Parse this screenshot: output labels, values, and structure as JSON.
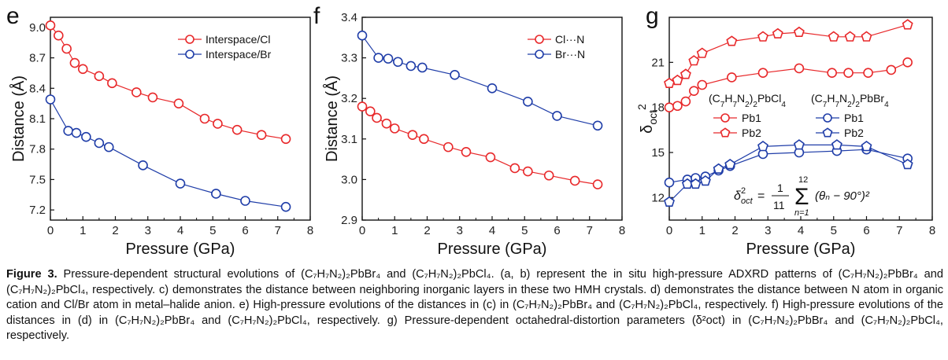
{
  "chart_data": [
    {
      "type": "scatter",
      "panel_label": "e",
      "xlabel": "Pressure (GPa)",
      "ylabel": "Distance (Å)",
      "xlim": [
        0,
        8
      ],
      "ylim": [
        7.1,
        9.1
      ],
      "xticks": [
        "0",
        "1",
        "2",
        "3",
        "4",
        "5",
        "6",
        "7",
        "8"
      ],
      "yticks": [
        "7.2",
        "7.5",
        "7.8",
        "8.1",
        "8.4",
        "8.7",
        "9.0"
      ],
      "yticks_values": [
        7.2,
        7.5,
        7.8,
        8.1,
        8.4,
        8.7,
        9.0
      ],
      "legend_position": "top-right",
      "series": [
        {
          "name": "Interspace/Cl",
          "color": "#e8282a",
          "marker": "circle",
          "x": [
            0,
            0.25,
            0.5,
            0.75,
            1.0,
            1.5,
            1.9,
            2.65,
            3.15,
            3.95,
            4.75,
            5.15,
            5.75,
            6.5,
            7.25
          ],
          "y": [
            9.02,
            8.92,
            8.79,
            8.65,
            8.59,
            8.52,
            8.45,
            8.36,
            8.31,
            8.25,
            8.1,
            8.05,
            7.99,
            7.94,
            7.9
          ]
        },
        {
          "name": "Interspace/Br",
          "color": "#1f3da8",
          "marker": "circle",
          "x": [
            0,
            0.55,
            0.8,
            1.1,
            1.5,
            1.8,
            2.85,
            4.0,
            5.1,
            6.0,
            7.25
          ],
          "y": [
            8.29,
            7.98,
            7.96,
            7.92,
            7.86,
            7.82,
            7.64,
            7.46,
            7.36,
            7.29,
            7.23
          ]
        }
      ]
    },
    {
      "type": "scatter",
      "panel_label": "f",
      "xlabel": "Pressure (GPa)",
      "ylabel": "Distance (Å)",
      "xlim": [
        0,
        8
      ],
      "ylim": [
        2.9,
        3.4
      ],
      "xticks": [
        "0",
        "1",
        "2",
        "3",
        "4",
        "5",
        "6",
        "7",
        "8"
      ],
      "yticks": [
        "2.9",
        "3.0",
        "3.1",
        "3.2",
        "3.3",
        "3.4"
      ],
      "yticks_values": [
        2.9,
        3.0,
        3.1,
        3.2,
        3.3,
        3.4
      ],
      "legend_position": "top-right",
      "series": [
        {
          "name": "Cl···N",
          "color": "#e8282a",
          "marker": "circle",
          "x": [
            0,
            0.25,
            0.45,
            0.75,
            1.0,
            1.55,
            1.9,
            2.65,
            3.2,
            3.95,
            4.7,
            5.1,
            5.75,
            6.55,
            7.25
          ],
          "y": [
            3.18,
            3.168,
            3.152,
            3.138,
            3.126,
            3.11,
            3.1,
            3.08,
            3.068,
            3.055,
            3.028,
            3.02,
            3.01,
            2.997,
            2.988
          ]
        },
        {
          "name": "Br···N",
          "color": "#1f3da8",
          "marker": "circle",
          "x": [
            0,
            0.5,
            0.8,
            1.1,
            1.5,
            1.85,
            2.85,
            4.0,
            5.1,
            6.0,
            7.25
          ],
          "y": [
            3.355,
            3.3,
            3.298,
            3.29,
            3.28,
            3.276,
            3.258,
            3.225,
            3.192,
            3.157,
            3.133
          ]
        }
      ]
    },
    {
      "type": "scatter",
      "panel_label": "g",
      "xlabel": "Pressure (GPa)",
      "ylabel": "δoct²",
      "xlim": [
        0,
        8
      ],
      "ylim": [
        10.5,
        24.0
      ],
      "xticks": [
        "0",
        "1",
        "2",
        "3",
        "4",
        "5",
        "6",
        "7",
        "8"
      ],
      "yticks": [
        "12",
        "15",
        "18",
        "21"
      ],
      "yticks_values": [
        12,
        15,
        18,
        21
      ],
      "legend_headers": [
        "(C7H7N2)2PbCl4",
        "(C7H7N2)2PbBr4"
      ],
      "formula": "δ²oct = (1/11) Σ_{n=1}^{12} (θn − 90°)²",
      "series": [
        {
          "name": "Pb1",
          "group": "(C7H7N2)2PbCl4",
          "color": "#e8282a",
          "marker": "circle",
          "x": [
            0,
            0.25,
            0.5,
            0.75,
            1.0,
            1.9,
            2.85,
            3.95,
            4.95,
            5.45,
            6.05,
            6.75,
            7.25
          ],
          "y": [
            18.0,
            18.1,
            18.4,
            19.1,
            19.5,
            20.0,
            20.3,
            20.6,
            20.3,
            20.3,
            20.3,
            20.5,
            21.0
          ]
        },
        {
          "name": "Pb2",
          "group": "(C7H7N2)2PbCl4",
          "color": "#e8282a",
          "marker": "pentagon",
          "x": [
            0,
            0.25,
            0.5,
            0.75,
            1.0,
            1.9,
            2.85,
            3.3,
            3.95,
            5.0,
            5.5,
            6.0,
            7.25
          ],
          "y": [
            19.6,
            19.8,
            20.2,
            21.1,
            21.6,
            22.4,
            22.7,
            22.9,
            23.0,
            22.7,
            22.7,
            22.7,
            23.5
          ]
        },
        {
          "name": "Pb1",
          "group": "(C7H7N2)2PbBr4",
          "color": "#1f3da8",
          "marker": "circle",
          "x": [
            0,
            0.55,
            0.8,
            1.1,
            1.5,
            1.85,
            2.85,
            3.95,
            5.1,
            6.0,
            7.25
          ],
          "y": [
            13.0,
            13.2,
            13.3,
            13.4,
            13.8,
            14.1,
            14.9,
            15.0,
            15.1,
            15.2,
            14.6
          ]
        },
        {
          "name": "Pb2",
          "group": "(C7H7N2)2PbBr4",
          "color": "#1f3da8",
          "marker": "pentagon",
          "x": [
            0,
            0.55,
            0.8,
            1.1,
            1.5,
            1.85,
            2.85,
            3.95,
            5.1,
            6.0,
            7.25
          ],
          "y": [
            11.7,
            12.9,
            12.9,
            13.1,
            13.9,
            14.2,
            15.4,
            15.5,
            15.5,
            15.4,
            14.2
          ]
        }
      ]
    }
  ],
  "caption": {
    "lead": "Figure 3.",
    "text": "Pressure-dependent structural evolutions of (C₇H₇N₂)₂PbBr₄ and (C₇H₇N₂)₂PbCl₄. (a, b) represent the in situ high-pressure ADXRD patterns of (C₇H₇N₂)₂PbBr₄ and (C₇H₇N₂)₂PbCl₄, respectively. c) demonstrates the distance between neighboring inorganic layers in these two HMH crystals. d) demonstrates the distance between N atom in organic cation and Cl/Br atom in metal–halide anion. e) High-pressure evolutions of the distances in (c) in (C₇H₇N₂)₂PbBr₄ and (C₇H₇N₂)₂PbCl₄, respectively. f) High-pressure evolutions of the distances in (d) in (C₇H₇N₂)₂PbBr₄ and (C₇H₇N₂)₂PbCl₄, respectively. g) Pressure-dependent octahedral-distortion parameters (δ²oct) in (C₇H₇N₂)₂PbBr₄ and (C₇H₇N₂)₂PbCl₄, respectively."
  }
}
